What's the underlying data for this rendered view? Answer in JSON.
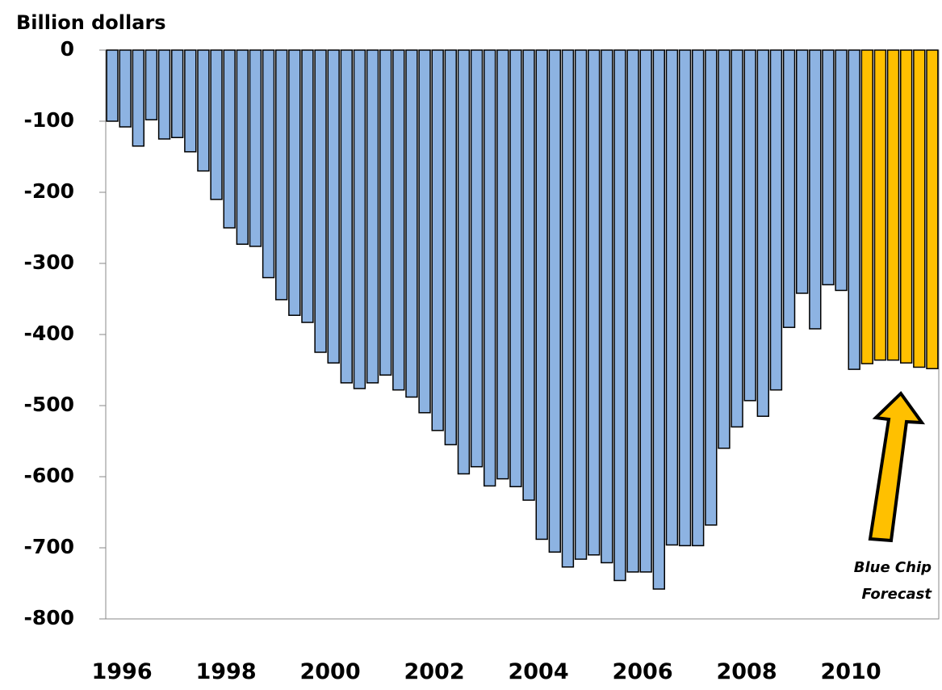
{
  "chart_data": {
    "type": "bar",
    "y_axis_label": "Billion dollars",
    "annotation": [
      "Blue Chip",
      "Forecast"
    ],
    "categories": [
      "1996",
      null,
      null,
      null,
      null,
      null,
      null,
      null,
      "1998",
      null,
      null,
      null,
      null,
      null,
      null,
      null,
      "2000",
      null,
      null,
      null,
      null,
      null,
      null,
      null,
      "2002",
      null,
      null,
      null,
      null,
      null,
      null,
      null,
      "2004",
      null,
      null,
      null,
      null,
      null,
      null,
      null,
      "2006",
      null,
      null,
      null,
      null,
      null,
      null,
      null,
      "2008",
      null,
      null,
      null,
      null,
      null,
      null,
      null,
      "2010",
      null,
      null,
      null,
      null,
      null,
      null,
      null
    ],
    "values": [
      -100,
      -108,
      -135,
      -98,
      -125,
      -123,
      -143,
      -170,
      -210,
      -250,
      -273,
      -276,
      -320,
      -351,
      -373,
      -383,
      -425,
      -440,
      -468,
      -476,
      -468,
      -457,
      -478,
      -488,
      -510,
      -535,
      -555,
      -596,
      -586,
      -613,
      -603,
      -614,
      -633,
      -688,
      -706,
      -727,
      -716,
      -710,
      -721,
      -746,
      -734,
      -734,
      -758,
      -696,
      -697,
      -697,
      -668,
      -560,
      -530,
      -493,
      -515,
      -478,
      -390,
      -342,
      -392,
      -330,
      -338,
      -449,
      -441,
      -436,
      -436,
      -440,
      -446,
      -448
    ],
    "colors": [
      "#8db3e2",
      "#8db3e2",
      "#8db3e2",
      "#8db3e2",
      "#8db3e2",
      "#8db3e2",
      "#8db3e2",
      "#8db3e2",
      "#8db3e2",
      "#8db3e2",
      "#8db3e2",
      "#8db3e2",
      "#8db3e2",
      "#8db3e2",
      "#8db3e2",
      "#8db3e2",
      "#8db3e2",
      "#8db3e2",
      "#8db3e2",
      "#8db3e2",
      "#8db3e2",
      "#8db3e2",
      "#8db3e2",
      "#8db3e2",
      "#8db3e2",
      "#8db3e2",
      "#8db3e2",
      "#8db3e2",
      "#8db3e2",
      "#8db3e2",
      "#8db3e2",
      "#8db3e2",
      "#8db3e2",
      "#8db3e2",
      "#8db3e2",
      "#8db3e2",
      "#8db3e2",
      "#8db3e2",
      "#8db3e2",
      "#8db3e2",
      "#8db3e2",
      "#8db3e2",
      "#8db3e2",
      "#8db3e2",
      "#8db3e2",
      "#8db3e2",
      "#8db3e2",
      "#8db3e2",
      "#8db3e2",
      "#8db3e2",
      "#8db3e2",
      "#8db3e2",
      "#8db3e2",
      "#8db3e2",
      "#8db3e2",
      "#8db3e2",
      "#8db3e2",
      "#8db3e2",
      "#ffc000",
      "#ffc000",
      "#ffc000",
      "#ffc000",
      "#ffc000",
      "#ffc000"
    ],
    "ylim": [
      -800,
      0
    ],
    "yticks": [
      0,
      -100,
      -200,
      -300,
      -400,
      -500,
      -600,
      -700,
      -800
    ],
    "grid": false
  }
}
